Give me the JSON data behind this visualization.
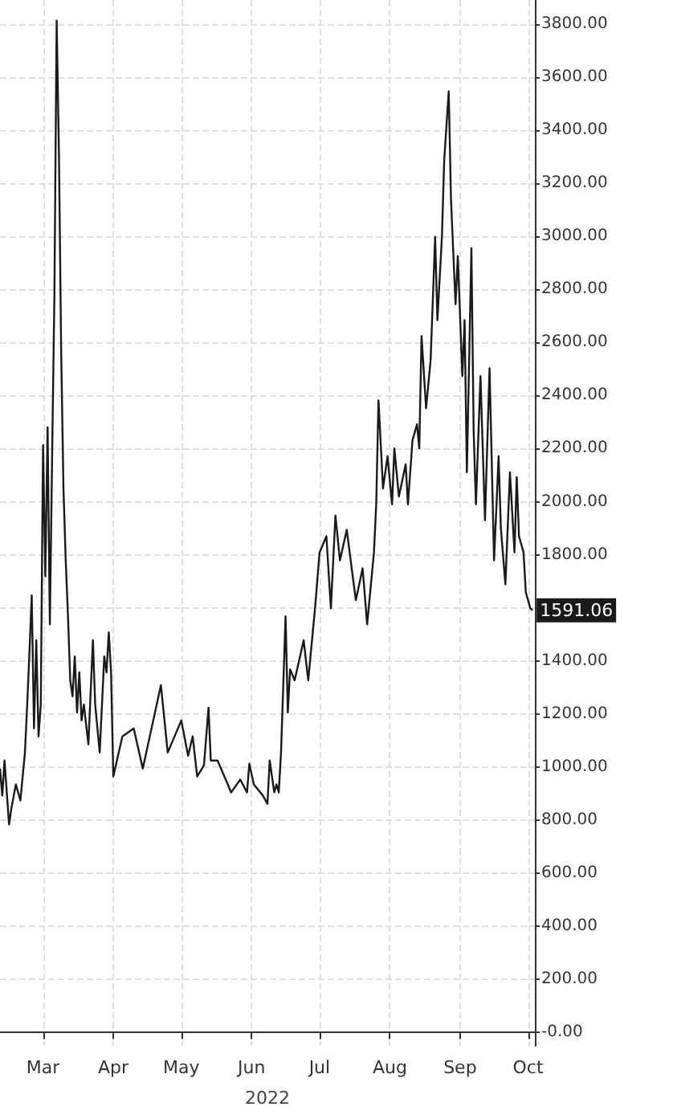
{
  "chart_data": {
    "type": "line",
    "xlabel": "2022",
    "x": [
      "2022-02-10",
      "2022-02-11",
      "2022-02-12",
      "2022-02-14",
      "2022-02-15",
      "2022-02-17",
      "2022-02-19",
      "2022-02-21",
      "2022-02-22",
      "2022-02-23",
      "2022-02-24",
      "2022-02-25",
      "2022-02-26",
      "2022-02-27",
      "2022-02-28",
      "2022-03-01",
      "2022-03-02",
      "2022-03-03",
      "2022-03-04",
      "2022-03-05",
      "2022-03-06",
      "2022-03-07",
      "2022-03-08",
      "2022-03-09",
      "2022-03-10",
      "2022-03-11",
      "2022-03-12",
      "2022-03-13",
      "2022-03-14",
      "2022-03-15",
      "2022-03-16",
      "2022-03-17",
      "2022-03-18",
      "2022-03-19",
      "2022-03-21",
      "2022-03-23",
      "2022-03-24",
      "2022-03-26",
      "2022-03-27",
      "2022-03-28",
      "2022-03-29",
      "2022-03-30",
      "2022-03-31",
      "2022-04-01",
      "2022-04-05",
      "2022-04-10",
      "2022-04-14",
      "2022-04-22",
      "2022-04-25",
      "2022-05-01",
      "2022-05-04",
      "2022-05-06",
      "2022-05-08",
      "2022-05-11",
      "2022-05-13",
      "2022-05-14",
      "2022-05-17",
      "2022-05-20",
      "2022-05-23",
      "2022-05-27",
      "2022-05-30",
      "2022-05-31",
      "2022-06-02",
      "2022-06-06",
      "2022-06-08",
      "2022-06-09",
      "2022-06-11",
      "2022-06-12",
      "2022-06-13",
      "2022-06-14",
      "2022-06-16",
      "2022-06-17",
      "2022-06-18",
      "2022-06-20",
      "2022-06-24",
      "2022-06-26",
      "2022-06-29",
      "2022-07-01",
      "2022-07-04",
      "2022-07-06",
      "2022-07-08",
      "2022-07-10",
      "2022-07-13",
      "2022-07-17",
      "2022-07-20",
      "2022-07-22",
      "2022-07-25",
      "2022-07-26",
      "2022-07-27",
      "2022-07-29",
      "2022-07-31",
      "2022-08-02",
      "2022-08-03",
      "2022-08-05",
      "2022-08-08",
      "2022-08-09",
      "2022-08-11",
      "2022-08-13",
      "2022-08-14",
      "2022-08-15",
      "2022-08-17",
      "2022-08-19",
      "2022-08-21",
      "2022-08-22",
      "2022-08-24",
      "2022-08-25",
      "2022-08-27",
      "2022-08-28",
      "2022-08-30",
      "2022-08-31",
      "2022-09-02",
      "2022-09-03",
      "2022-09-04",
      "2022-09-06",
      "2022-09-07",
      "2022-09-08",
      "2022-09-10",
      "2022-09-12",
      "2022-09-14",
      "2022-09-16",
      "2022-09-18",
      "2022-09-19",
      "2022-09-21",
      "2022-09-23",
      "2022-09-25",
      "2022-09-26",
      "2022-09-27",
      "2022-09-29",
      "2022-09-30",
      "2022-10-02",
      "2022-10-03"
    ],
    "series": [
      {
        "color": "#1a1a1a",
        "values": [
          995,
          893,
          1025,
          784,
          844,
          935,
          875,
          1055,
          1236,
          1435,
          1647,
          1146,
          1478,
          1116,
          1236,
          2213,
          1719,
          2280,
          1538,
          2171,
          2774,
          3812,
          3317,
          2563,
          2050,
          1779,
          1568,
          1327,
          1267,
          1417,
          1206,
          1357,
          1176,
          1236,
          1086,
          1478,
          1236,
          1055,
          1236,
          1417,
          1357,
          1508,
          1357,
          965,
          1116,
          1146,
          995,
          1309,
          1055,
          1176,
          1043,
          1116,
          965,
          1007,
          1224,
          1025,
          1025,
          965,
          905,
          953,
          905,
          1013,
          935,
          893,
          862,
          1025,
          905,
          935,
          905,
          1055,
          1568,
          1206,
          1369,
          1327,
          1478,
          1327,
          1598,
          1809,
          1870,
          1598,
          1948,
          1779,
          1894,
          1629,
          1749,
          1538,
          1809,
          1990,
          2382,
          2050,
          2171,
          1990,
          2201,
          2020,
          2141,
          1990,
          2231,
          2292,
          2201,
          2624,
          2352,
          2533,
          2998,
          2684,
          2998,
          3287,
          3546,
          3136,
          2744,
          2925,
          2473,
          2684,
          2111,
          2955,
          2262,
          1990,
          2473,
          1930,
          2503,
          1779,
          2171,
          1900,
          1689,
          2111,
          1809,
          2093,
          1870,
          1809,
          1659,
          1598,
          1591.06
        ]
      }
    ],
    "xlim": [
      "2022-02-10",
      "2022-10-04"
    ],
    "xticks": [
      {
        "value": "2022-03-01",
        "label": "Mar"
      },
      {
        "value": "2022-04-01",
        "label": "Apr"
      },
      {
        "value": "2022-05-01",
        "label": "May"
      },
      {
        "value": "2022-06-01",
        "label": "Jun"
      },
      {
        "value": "2022-07-01",
        "label": "Jul"
      },
      {
        "value": "2022-08-01",
        "label": "Aug"
      },
      {
        "value": "2022-09-01",
        "label": "Sep"
      },
      {
        "value": "2022-10-01",
        "label": "Oct"
      }
    ],
    "ylim": [
      -50,
      3890
    ],
    "yticks": [
      {
        "value": 0,
        "label": "-0.00"
      },
      {
        "value": 200,
        "label": "200.00"
      },
      {
        "value": 400,
        "label": "400.00"
      },
      {
        "value": 600,
        "label": "600.00"
      },
      {
        "value": 800,
        "label": "800.00"
      },
      {
        "value": 1000,
        "label": "1000.00"
      },
      {
        "value": 1200,
        "label": "1200.00"
      },
      {
        "value": 1400,
        "label": "1400.00"
      },
      {
        "value": 1600,
        "label": null
      },
      {
        "value": 1800,
        "label": "1800.00"
      },
      {
        "value": 2000,
        "label": "2000.00"
      },
      {
        "value": 2200,
        "label": "2200.00"
      },
      {
        "value": 2400,
        "label": "2400.00"
      },
      {
        "value": 2600,
        "label": "2600.00"
      },
      {
        "value": 2800,
        "label": "2800.00"
      },
      {
        "value": 3000,
        "label": "3000.00"
      },
      {
        "value": 3200,
        "label": "3200.00"
      },
      {
        "value": 3400,
        "label": "3400.00"
      },
      {
        "value": 3600,
        "label": "3600.00"
      },
      {
        "value": 3800,
        "label": "3800.00"
      }
    ],
    "annotations": [
      {
        "text": "1591.06",
        "x": "2022-10-03",
        "y": 1591.06
      }
    ],
    "grid": true,
    "marker": "none",
    "line_style": "solid"
  }
}
